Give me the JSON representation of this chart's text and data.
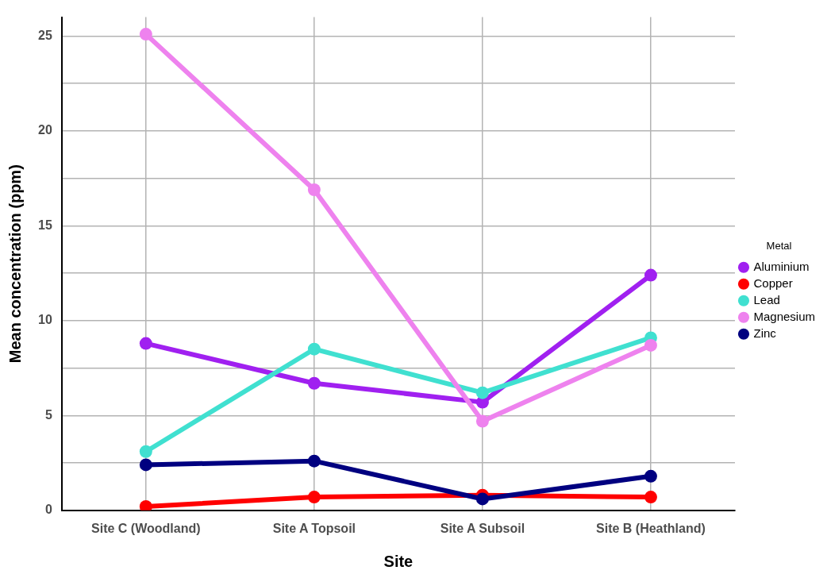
{
  "chart_data": {
    "type": "line",
    "xlabel": "Site",
    "ylabel": "Mean concentration (ppm)",
    "legend_title": "Metal",
    "legend": "right",
    "grid": true,
    "marker": "circle",
    "line_style": "solid",
    "categories": [
      "Site C (Woodland)",
      "Site A Topsoil",
      "Site A Subsoil",
      "Site B (Heathland)"
    ],
    "ylim": [
      0,
      26
    ],
    "yticks": [
      0,
      {
        "value": 2.5,
        "label": null
      },
      5,
      {
        "value": 7.5,
        "label": null
      },
      10,
      {
        "value": 12.5,
        "label": null
      },
      15,
      {
        "value": 17.5,
        "label": null
      },
      20,
      {
        "value": 22.5,
        "label": null
      },
      25
    ],
    "series": [
      {
        "name": "Aluminium",
        "color": "#a020f0",
        "values": [
          8.8,
          6.7,
          5.7,
          12.4
        ]
      },
      {
        "name": "Copper",
        "color": "#ff0000",
        "values": [
          0.2,
          0.7,
          0.8,
          0.7
        ]
      },
      {
        "name": "Lead",
        "color": "#40e0d0",
        "values": [
          3.1,
          8.5,
          6.2,
          9.1
        ]
      },
      {
        "name": "Magnesium",
        "color": "#ee82ee",
        "values": [
          25.1,
          16.9,
          4.7,
          8.7
        ]
      },
      {
        "name": "Zinc",
        "color": "#000080",
        "values": [
          2.4,
          2.6,
          0.6,
          1.8
        ]
      }
    ]
  }
}
